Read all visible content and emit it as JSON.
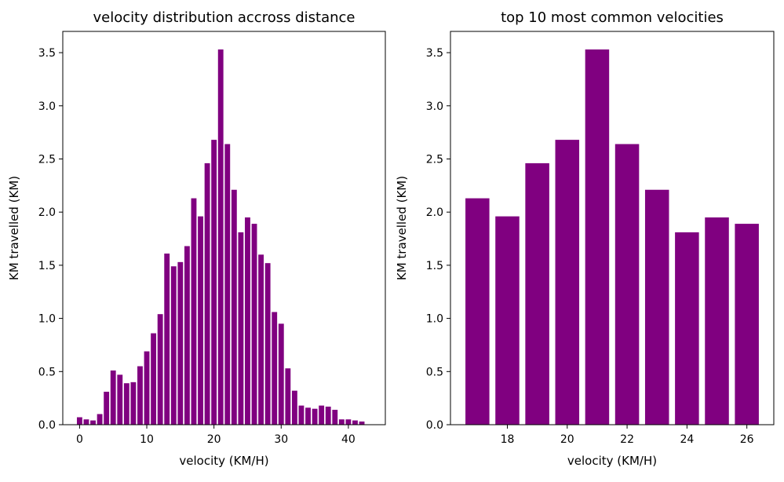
{
  "colors": {
    "bar": "#800080",
    "axis": "#000000",
    "background": "#ffffff"
  },
  "chart_data": [
    {
      "type": "bar",
      "title": "velocity distribution accross distance",
      "xlabel": "velocity (KM/H)",
      "ylabel": "KM travelled (KM)",
      "xlim": [
        -2.5,
        45.5
      ],
      "ylim": [
        0,
        3.7
      ],
      "xticks": [
        0,
        10,
        20,
        30,
        40
      ],
      "yticks": [
        0.0,
        0.5,
        1.0,
        1.5,
        2.0,
        2.5,
        3.0,
        3.5
      ],
      "bar_width": 0.8,
      "grid": false,
      "x": [
        0,
        1,
        2,
        3,
        4,
        5,
        6,
        7,
        8,
        9,
        10,
        11,
        12,
        13,
        14,
        15,
        16,
        17,
        18,
        19,
        20,
        21,
        22,
        23,
        24,
        25,
        26,
        27,
        28,
        29,
        30,
        31,
        32,
        33,
        34,
        35,
        36,
        37,
        38,
        39,
        40,
        41,
        42
      ],
      "values": [
        0.07,
        0.05,
        0.04,
        0.1,
        0.31,
        0.51,
        0.47,
        0.39,
        0.4,
        0.55,
        0.69,
        0.86,
        1.04,
        1.61,
        1.49,
        1.53,
        1.68,
        2.13,
        1.96,
        2.46,
        2.68,
        3.53,
        2.64,
        2.21,
        1.81,
        1.95,
        1.89,
        1.6,
        1.52,
        1.06,
        0.95,
        0.53,
        0.32,
        0.18,
        0.16,
        0.15,
        0.18,
        0.17,
        0.14,
        0.05,
        0.05,
        0.04,
        0.03
      ]
    },
    {
      "type": "bar",
      "title": "top 10 most common velocities",
      "xlabel": "velocity (KM/H)",
      "ylabel": "KM travelled (KM)",
      "xlim": [
        16.1,
        26.9
      ],
      "ylim": [
        0,
        3.7
      ],
      "xticks": [
        18,
        20,
        22,
        24,
        26
      ],
      "yticks": [
        0.0,
        0.5,
        1.0,
        1.5,
        2.0,
        2.5,
        3.0,
        3.5
      ],
      "bar_width": 0.8,
      "grid": false,
      "x": [
        17,
        18,
        19,
        20,
        21,
        22,
        23,
        24,
        25,
        26
      ],
      "values": [
        2.13,
        1.96,
        2.46,
        2.68,
        3.53,
        2.64,
        2.21,
        1.81,
        1.95,
        1.89
      ]
    }
  ]
}
